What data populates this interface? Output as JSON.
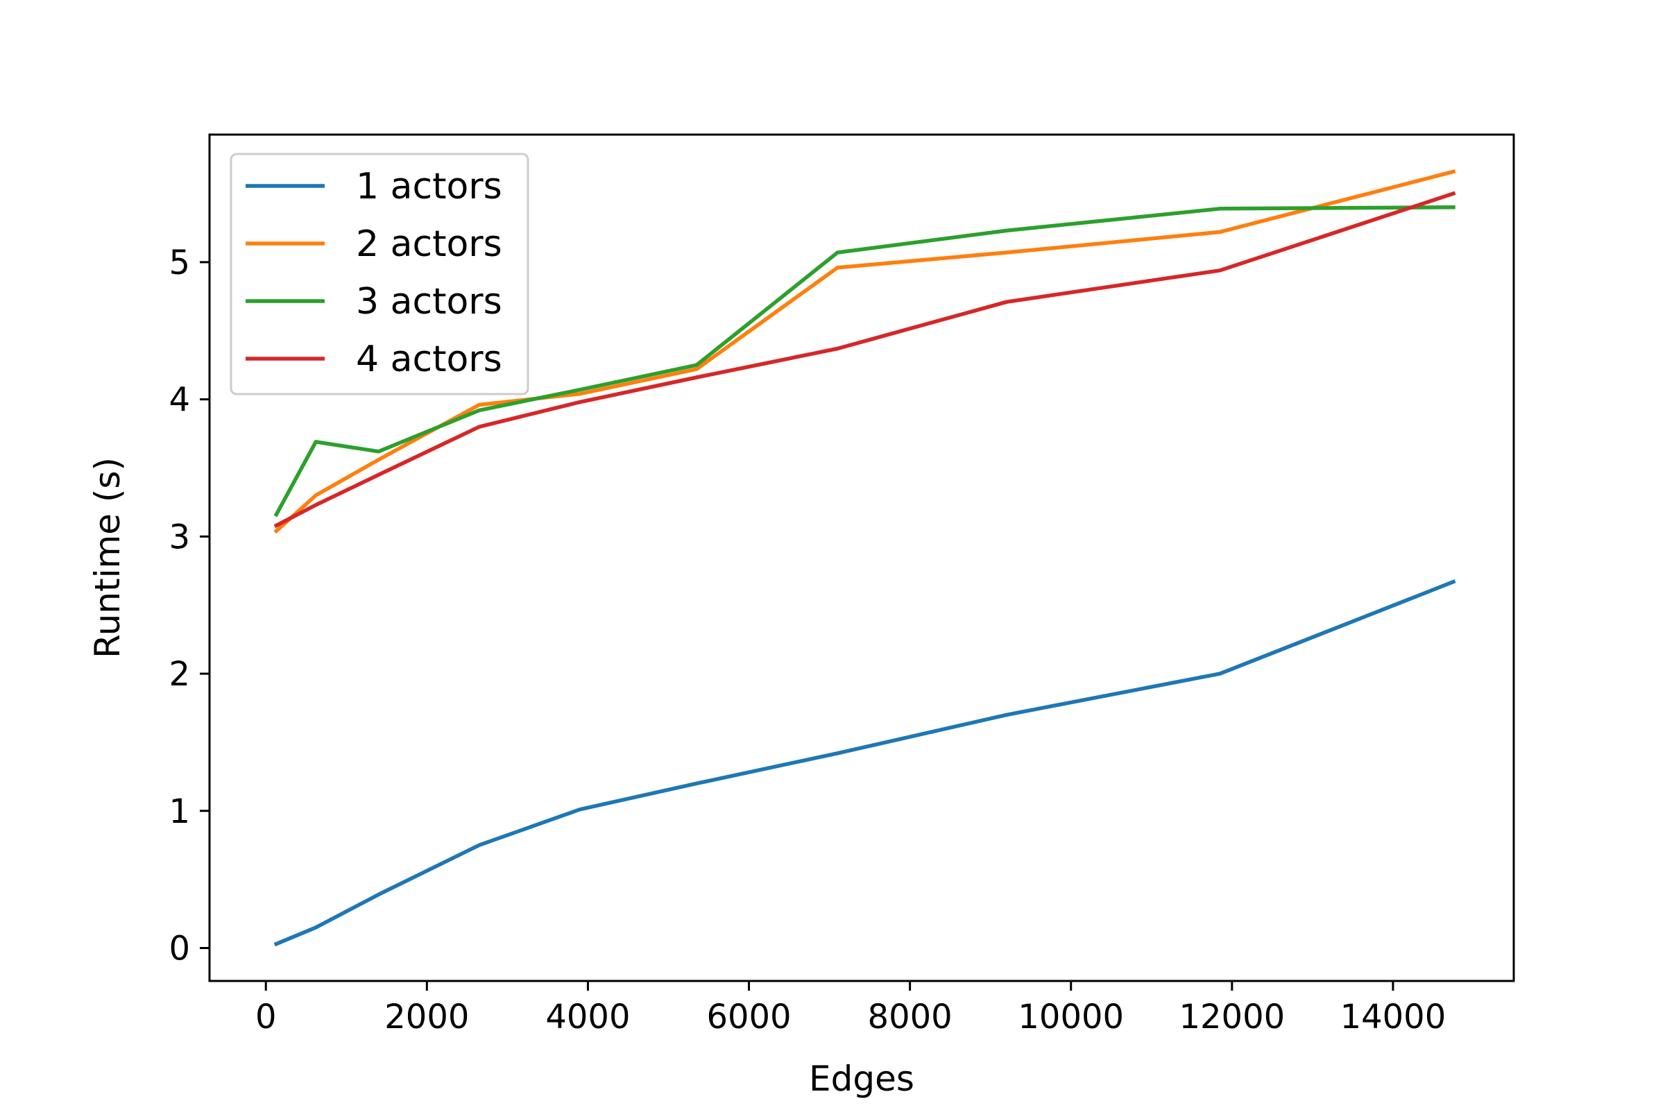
{
  "chart_data": {
    "type": "line",
    "title": "",
    "xlabel": "Edges",
    "ylabel": "Runtime (s)",
    "xlim": [
      -700,
      15500
    ],
    "ylim": [
      -0.24,
      5.93
    ],
    "xticks": [
      0,
      2000,
      4000,
      6000,
      8000,
      10000,
      12000,
      14000
    ],
    "yticks": [
      0,
      1,
      2,
      3,
      4,
      5
    ],
    "grid": false,
    "legend_position": "upper-left",
    "x": [
      130,
      620,
      1400,
      2650,
      3900,
      5350,
      7100,
      9200,
      11850,
      14750
    ],
    "series": [
      {
        "name": "1 actors",
        "color": "#1f77b4",
        "values": [
          0.03,
          0.15,
          0.39,
          0.75,
          1.01,
          1.2,
          1.42,
          1.7,
          2.0,
          2.67
        ]
      },
      {
        "name": "2 actors",
        "color": "#ff7f0e",
        "values": [
          3.04,
          3.3,
          3.56,
          3.96,
          4.04,
          4.22,
          4.96,
          5.07,
          5.22,
          5.66
        ]
      },
      {
        "name": "3 actors",
        "color": "#2ca02c",
        "values": [
          3.16,
          3.69,
          3.62,
          3.92,
          4.07,
          4.25,
          5.07,
          5.23,
          5.39,
          5.4
        ]
      },
      {
        "name": "4 actors",
        "color": "#d62728",
        "values": [
          3.08,
          3.23,
          3.45,
          3.8,
          3.98,
          4.16,
          4.37,
          4.71,
          4.94,
          5.5
        ]
      }
    ]
  }
}
